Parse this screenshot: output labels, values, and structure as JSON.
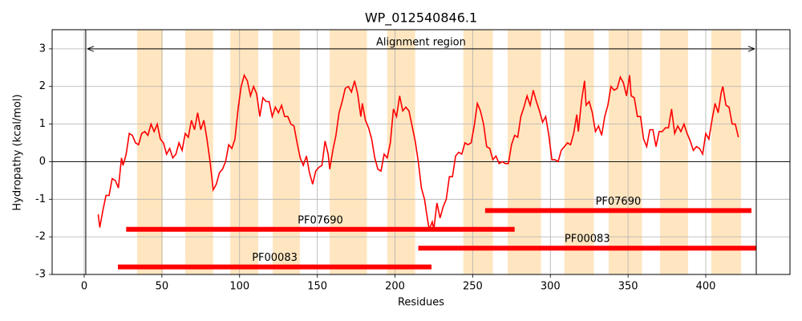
{
  "chart_data": {
    "type": "line",
    "title": "WP_012540846.1",
    "xlabel": "Residues",
    "ylabel": "Hydropathy (kcal/mol)",
    "xlim": [
      -20.65,
      454.2
    ],
    "ylim": [
      -3,
      3.51
    ],
    "xticks": [
      0,
      50,
      100,
      150,
      200,
      250,
      300,
      350,
      400
    ],
    "yticks": [
      -3,
      -2,
      -1,
      0,
      1,
      2,
      3
    ],
    "grid": true,
    "x": [
      9,
      10,
      12,
      14,
      16,
      18,
      20,
      22,
      24,
      25,
      27,
      29,
      31,
      33,
      35,
      37,
      39,
      41,
      43,
      45,
      47,
      49,
      51,
      53,
      55,
      57,
      59,
      61,
      63,
      65,
      67,
      69,
      71,
      73,
      75,
      77,
      79,
      81,
      83,
      85,
      87,
      89,
      91,
      93,
      95,
      97,
      99,
      101,
      103,
      105,
      107,
      109,
      111,
      113,
      115,
      117,
      119,
      121,
      123,
      125,
      127,
      129,
      131,
      133,
      135,
      137,
      139,
      141,
      143,
      145,
      147,
      149,
      151,
      153,
      155,
      157,
      158,
      160,
      162,
      164,
      166,
      168,
      170,
      172,
      174,
      176,
      178,
      179,
      181,
      183,
      185,
      187,
      189,
      191,
      193,
      195,
      197,
      199,
      201,
      203,
      205,
      207,
      209,
      211,
      213,
      215,
      217,
      219,
      221,
      222,
      224,
      225,
      227,
      229,
      231,
      233,
      235,
      237,
      239,
      241,
      243,
      245,
      247,
      249,
      251,
      253,
      255,
      257,
      259,
      261,
      263,
      265,
      267,
      269,
      271,
      273,
      275,
      277,
      279,
      281,
      283,
      285,
      287,
      289,
      291,
      293,
      295,
      297,
      299,
      301,
      303,
      305,
      307,
      309,
      311,
      313,
      315,
      317,
      318,
      320,
      322,
      323,
      325,
      327,
      329,
      331,
      333,
      335,
      337,
      339,
      341,
      343,
      345,
      347,
      349,
      351,
      352,
      354,
      356,
      358,
      360,
      362,
      364,
      366,
      368,
      370,
      372,
      374,
      376,
      378,
      380,
      382,
      384,
      386,
      388,
      390,
      392,
      394,
      396,
      398,
      400,
      402,
      404,
      406,
      408,
      410,
      411,
      413,
      415,
      417,
      419,
      421
    ],
    "series": [
      {
        "color": "#ff0000",
        "values": [
          -1.4,
          -1.75,
          -1.3,
          -0.9,
          -0.9,
          -0.45,
          -0.5,
          -0.7,
          0.1,
          -0.1,
          0.2,
          0.75,
          0.7,
          0.5,
          0.45,
          0.75,
          0.8,
          0.7,
          1.0,
          0.8,
          1.0,
          0.6,
          0.5,
          0.2,
          0.35,
          0.1,
          0.2,
          0.5,
          0.3,
          0.75,
          0.65,
          1.1,
          0.85,
          1.3,
          0.85,
          1.1,
          0.6,
          0,
          -0.75,
          -0.6,
          -0.3,
          -0.2,
          0,
          0.45,
          0.35,
          0.6,
          1.4,
          2.0,
          2.3,
          2.15,
          1.75,
          2.0,
          1.8,
          1.2,
          1.7,
          1.6,
          1.6,
          1.2,
          1.45,
          1.3,
          1.5,
          1.2,
          1.2,
          1.0,
          0.95,
          0.5,
          0.1,
          -0.1,
          0.15,
          -0.3,
          -0.6,
          -0.25,
          -0.15,
          -0.1,
          0.55,
          0.2,
          -0.2,
          0.3,
          0.7,
          1.3,
          1.6,
          1.95,
          2.0,
          1.85,
          2.15,
          1.8,
          1.2,
          1.55,
          1.1,
          0.9,
          0.6,
          0.1,
          -0.2,
          -0.25,
          0.2,
          0.1,
          0.5,
          1.4,
          1.2,
          1.75,
          1.35,
          1.45,
          1.35,
          0.95,
          0.55,
          0,
          -0.7,
          -1.0,
          -1.55,
          -1.8,
          -1.6,
          -1.8,
          -1.1,
          -1.5,
          -1.2,
          -1.0,
          -0.4,
          -0.4,
          0.15,
          0.25,
          0.2,
          0.5,
          0.45,
          0.5,
          0.95,
          1.55,
          1.35,
          1.0,
          0.4,
          0.35,
          0.05,
          0.15,
          -0.05,
          0,
          -0.05,
          -0.05,
          0.45,
          0.7,
          0.65,
          1.2,
          1.45,
          1.75,
          1.5,
          1.9,
          1.6,
          1.35,
          1.05,
          1.2,
          0.7,
          0.05,
          0.05,
          0,
          0.3,
          0.4,
          0.5,
          0.45,
          0.75,
          1.25,
          0.8,
          1.6,
          2.15,
          1.5,
          1.6,
          1.3,
          0.8,
          0.95,
          0.7,
          1.2,
          1.5,
          2.0,
          1.9,
          1.95,
          2.25,
          2.1,
          1.75,
          2.3,
          1.75,
          1.7,
          1.2,
          1.2,
          0.6,
          0.4,
          0.85,
          0.85,
          0.4,
          0.8,
          0.8,
          0.9,
          0.9,
          1.4,
          0.75,
          0.95,
          0.8,
          1.0,
          0.75,
          0.55,
          0.3,
          0.4,
          0.35,
          0.2,
          0.75,
          0.6,
          1.1,
          1.55,
          1.3,
          1.85,
          2.0,
          1.5,
          1.45,
          1.0,
          1.0,
          0.65
        ]
      }
    ],
    "regions_color": "#ffe6c0",
    "regions": [
      {
        "start": 34,
        "end": 50.6
      },
      {
        "start": 65,
        "end": 83
      },
      {
        "start": 94,
        "end": 112
      },
      {
        "start": 121.3,
        "end": 138.8
      },
      {
        "start": 158,
        "end": 182
      },
      {
        "start": 195,
        "end": 213
      },
      {
        "start": 244,
        "end": 263
      },
      {
        "start": 272.5,
        "end": 294
      },
      {
        "start": 309,
        "end": 328
      },
      {
        "start": 337.5,
        "end": 359
      },
      {
        "start": 370.6,
        "end": 388.6
      },
      {
        "start": 403.6,
        "end": 422.7
      }
    ],
    "domains_color": "#ff0000",
    "domains": [
      {
        "label": "PF07690",
        "start": 258,
        "end": 429.4,
        "y": -1.3
      },
      {
        "label": "PF07690",
        "start": 27,
        "end": 277,
        "y": -1.8
      },
      {
        "label": "PF00083",
        "start": 215,
        "end": 432.5,
        "y": -2.3
      },
      {
        "label": "PF00083",
        "start": 21.7,
        "end": 223.5,
        "y": -2.8
      }
    ],
    "alignment": {
      "label": "Alignment region",
      "start": 1,
      "end": 432.5,
      "y": 3
    }
  }
}
